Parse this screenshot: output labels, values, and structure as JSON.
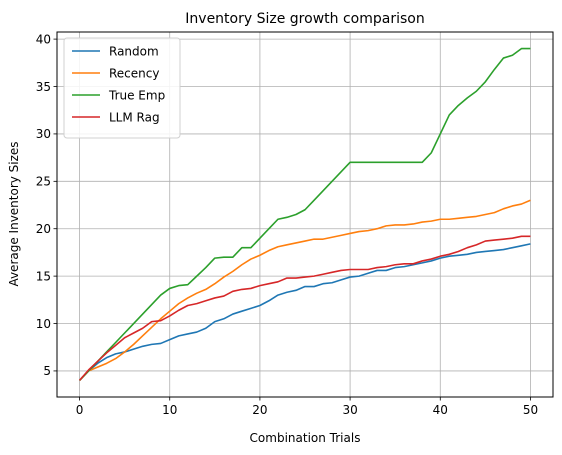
{
  "chart_data": {
    "type": "line",
    "title": "Inventory Size growth comparison",
    "xlabel": "Combination Trials",
    "ylabel": "Average Inventory Sizes",
    "xlim": [
      -2.5,
      52.5
    ],
    "ylim": [
      2.25,
      40.75
    ],
    "xticks": [
      0,
      10,
      20,
      30,
      40,
      50
    ],
    "yticks": [
      5,
      10,
      15,
      20,
      25,
      30,
      35,
      40
    ],
    "grid": true,
    "legend_position": "top-left",
    "x": [
      0,
      1,
      2,
      3,
      4,
      5,
      6,
      7,
      8,
      9,
      10,
      11,
      12,
      13,
      14,
      15,
      16,
      17,
      18,
      19,
      20,
      21,
      22,
      23,
      24,
      25,
      26,
      27,
      28,
      29,
      30,
      31,
      32,
      33,
      34,
      35,
      36,
      37,
      38,
      39,
      40,
      41,
      42,
      43,
      44,
      45,
      46,
      47,
      48,
      49,
      50
    ],
    "series": [
      {
        "name": "Random",
        "color": "#1f77b4",
        "values": [
          4.0,
          5.0,
          5.8,
          6.4,
          6.8,
          7.0,
          7.3,
          7.6,
          7.8,
          7.9,
          8.3,
          8.7,
          8.9,
          9.1,
          9.5,
          10.2,
          10.5,
          11.0,
          11.3,
          11.6,
          11.9,
          12.4,
          13.0,
          13.3,
          13.5,
          13.9,
          13.9,
          14.2,
          14.3,
          14.6,
          14.9,
          15.0,
          15.3,
          15.6,
          15.6,
          15.9,
          16.0,
          16.2,
          16.4,
          16.6,
          16.9,
          17.1,
          17.2,
          17.3,
          17.5,
          17.6,
          17.7,
          17.8,
          18.0,
          18.2,
          18.4
        ]
      },
      {
        "name": "Recency",
        "color": "#ff7f0e",
        "values": [
          4.0,
          5.0,
          5.4,
          5.8,
          6.3,
          7.0,
          7.8,
          8.7,
          9.6,
          10.5,
          11.3,
          12.1,
          12.7,
          13.2,
          13.6,
          14.2,
          14.9,
          15.5,
          16.2,
          16.8,
          17.2,
          17.7,
          18.1,
          18.3,
          18.5,
          18.7,
          18.9,
          18.9,
          19.1,
          19.3,
          19.5,
          19.7,
          19.8,
          20.0,
          20.3,
          20.4,
          20.4,
          20.5,
          20.7,
          20.8,
          21.0,
          21.0,
          21.1,
          21.2,
          21.3,
          21.5,
          21.7,
          22.1,
          22.4,
          22.6,
          23.0
        ]
      },
      {
        "name": "True Emp",
        "color": "#2ca02c",
        "values": [
          4.0,
          5.0,
          6.0,
          7.0,
          8.0,
          9.0,
          10.0,
          11.0,
          12.0,
          13.0,
          13.7,
          14.0,
          14.1,
          15.0,
          15.9,
          16.9,
          17.0,
          17.0,
          18.0,
          18.0,
          19.0,
          20.0,
          21.0,
          21.2,
          21.5,
          22.0,
          23.0,
          24.0,
          25.0,
          26.0,
          27.0,
          27.0,
          27.0,
          27.0,
          27.0,
          27.0,
          27.0,
          27.0,
          27.0,
          28.0,
          30.0,
          32.0,
          33.0,
          33.8,
          34.5,
          35.5,
          36.8,
          38.0,
          38.3,
          39.0,
          39.0
        ]
      },
      {
        "name": "LLM Rag",
        "color": "#d62728",
        "values": [
          4.0,
          5.1,
          6.0,
          6.9,
          7.7,
          8.5,
          9.0,
          9.5,
          10.2,
          10.3,
          10.8,
          11.4,
          11.9,
          12.1,
          12.4,
          12.7,
          12.9,
          13.4,
          13.6,
          13.7,
          14.0,
          14.2,
          14.4,
          14.8,
          14.8,
          14.9,
          15.0,
          15.2,
          15.4,
          15.6,
          15.7,
          15.7,
          15.7,
          15.9,
          16.0,
          16.2,
          16.3,
          16.3,
          16.6,
          16.8,
          17.1,
          17.3,
          17.6,
          18.0,
          18.3,
          18.7,
          18.8,
          18.9,
          19.0,
          19.2,
          19.2
        ]
      }
    ]
  }
}
